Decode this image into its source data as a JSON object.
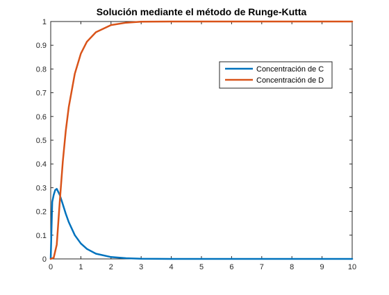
{
  "chart_data": {
    "type": "line",
    "title": "Solución mediante el método de Runge-Kutta",
    "xlabel": "",
    "ylabel": "",
    "xlim": [
      0,
      10
    ],
    "ylim": [
      0,
      1
    ],
    "x_ticks": [
      0,
      1,
      2,
      3,
      4,
      5,
      6,
      7,
      8,
      9,
      10
    ],
    "y_ticks": [
      0,
      0.1,
      0.2,
      0.3,
      0.4,
      0.5,
      0.6,
      0.7,
      0.8,
      0.9,
      1
    ],
    "x_tick_labels": [
      "0",
      "1",
      "2",
      "3",
      "4",
      "5",
      "6",
      "7",
      "8",
      "9",
      "10"
    ],
    "y_tick_labels": [
      "0",
      "0.1",
      "0.2",
      "0.3",
      "0.4",
      "0.5",
      "0.6",
      "0.7",
      "0.8",
      "0.9",
      "1"
    ],
    "grid": false,
    "legend_position": "top-right",
    "series": [
      {
        "name": "Concentración de C",
        "color": "#0072BD",
        "x": [
          0,
          0.05,
          0.1,
          0.15,
          0.2,
          0.3,
          0.4,
          0.5,
          0.6,
          0.8,
          1.0,
          1.2,
          1.5,
          2.0,
          2.5,
          3.0,
          4.0,
          5.0,
          6.0,
          7.0,
          8.0,
          9.0,
          10.0
        ],
        "values": [
          0,
          0.24,
          0.27,
          0.29,
          0.295,
          0.27,
          0.23,
          0.19,
          0.155,
          0.1,
          0.065,
          0.042,
          0.022,
          0.008,
          0.003,
          0.001,
          0,
          0,
          0,
          0,
          0,
          0,
          0
        ]
      },
      {
        "name": "Concentración de D",
        "color": "#D95319",
        "x": [
          0,
          0.1,
          0.2,
          0.3,
          0.4,
          0.5,
          0.6,
          0.8,
          1.0,
          1.2,
          1.5,
          2.0,
          2.5,
          3.0,
          4.0,
          5.0,
          6.0,
          7.0,
          8.0,
          9.0,
          10.0
        ],
        "values": [
          0,
          0.005,
          0.06,
          0.24,
          0.41,
          0.54,
          0.64,
          0.78,
          0.865,
          0.915,
          0.955,
          0.985,
          0.995,
          0.999,
          1,
          1,
          1,
          1,
          1,
          1,
          1
        ]
      }
    ]
  }
}
